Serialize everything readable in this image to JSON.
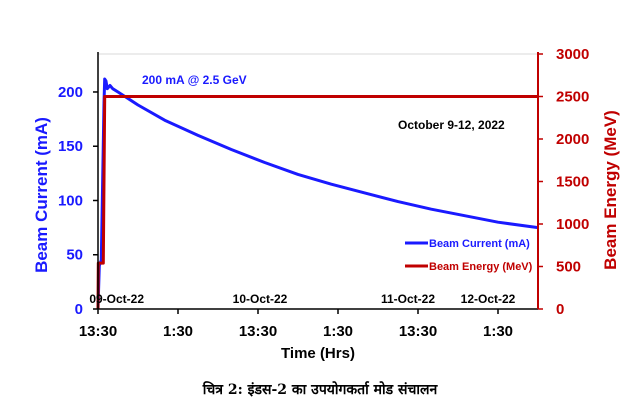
{
  "caption": "चित्र 2: इंडस-2 का उपयोगकर्ता मोड संचालन",
  "chart_data": {
    "type": "line",
    "xlabel": "Time (Hrs)",
    "ylabel_left": "Beam Current (mA)",
    "ylabel_right": "Beam Energy (MeV)",
    "x_ticks": [
      "13:30",
      "1:30",
      "13:30",
      "1:30",
      "13:30",
      "1:30"
    ],
    "x_tick_hours": [
      0,
      12,
      24,
      36,
      48,
      60
    ],
    "xlim_hours": [
      0,
      66
    ],
    "ylim_left": [
      0,
      235
    ],
    "yticks_left": [
      0,
      50,
      100,
      150,
      200
    ],
    "ylim_right": [
      0,
      3000
    ],
    "yticks_right": [
      0,
      500,
      1000,
      1500,
      2000,
      2500,
      3000
    ],
    "date_labels": [
      {
        "text": "09-Oct-22",
        "hour": 2.8
      },
      {
        "text": "10-Oct-22",
        "hour": 24.3
      },
      {
        "text": "11-Oct-22",
        "hour": 46.5
      },
      {
        "text": "12-Oct-22",
        "hour": 58.5
      }
    ],
    "annotations": {
      "beam_label": "200 mA @ 2.5 GeV",
      "date_range": "October 9-12, 2022"
    },
    "legend_position": "bottom-right",
    "series": [
      {
        "name": "Beam Current (mA)",
        "axis": "left",
        "color": "#1a1aff",
        "points": [
          [
            0,
            0
          ],
          [
            0.2,
            40
          ],
          [
            0.5,
            45
          ],
          [
            0.7,
            120
          ],
          [
            0.9,
            190
          ],
          [
            1.0,
            212
          ],
          [
            1.2,
            210
          ],
          [
            1.4,
            203
          ],
          [
            1.8,
            206
          ],
          [
            2.2,
            203
          ],
          [
            3,
            200
          ],
          [
            6,
            188
          ],
          [
            10,
            174
          ],
          [
            15,
            160
          ],
          [
            20,
            147
          ],
          [
            25,
            135
          ],
          [
            30,
            124
          ],
          [
            35,
            115
          ],
          [
            40,
            107
          ],
          [
            45,
            99
          ],
          [
            50,
            92
          ],
          [
            55,
            86
          ],
          [
            60,
            80
          ],
          [
            66,
            75
          ]
        ]
      },
      {
        "name": "Beam Energy (MeV)",
        "axis": "right",
        "color": "#c00000",
        "points": [
          [
            0,
            0
          ],
          [
            0.05,
            540
          ],
          [
            0.8,
            540
          ],
          [
            1.0,
            2500
          ],
          [
            66,
            2500
          ]
        ]
      }
    ]
  }
}
